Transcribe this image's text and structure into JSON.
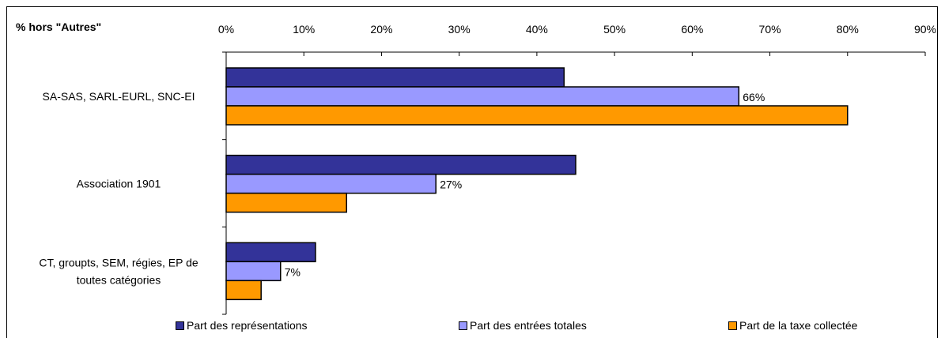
{
  "chart_data": {
    "type": "bar",
    "orientation": "horizontal",
    "corner_label": "% hors \"Autres\"",
    "x_ticks": [
      "0%",
      "10%",
      "20%",
      "30%",
      "40%",
      "50%",
      "60%",
      "70%",
      "80%",
      "90%"
    ],
    "xlim": [
      0,
      90
    ],
    "categories": [
      "SA-SAS, SARL-EURL, SNC-EI",
      "Association 1901",
      "CT, groupts, SEM, régies, EP de toutes catégories"
    ],
    "series": [
      {
        "name": "Part des représentations",
        "color": "#333399",
        "values": [
          43.5,
          45,
          11.5
        ]
      },
      {
        "name": "Part des entrées totales",
        "color": "#9999ff",
        "values": [
          66,
          27,
          7
        ],
        "labels": [
          "66%",
          "27%",
          "7%"
        ]
      },
      {
        "name": "Part de la taxe collectée",
        "color": "#ff9900",
        "values": [
          80,
          15.5,
          4.5
        ]
      }
    ],
    "legend_position": "bottom",
    "grid": false
  }
}
